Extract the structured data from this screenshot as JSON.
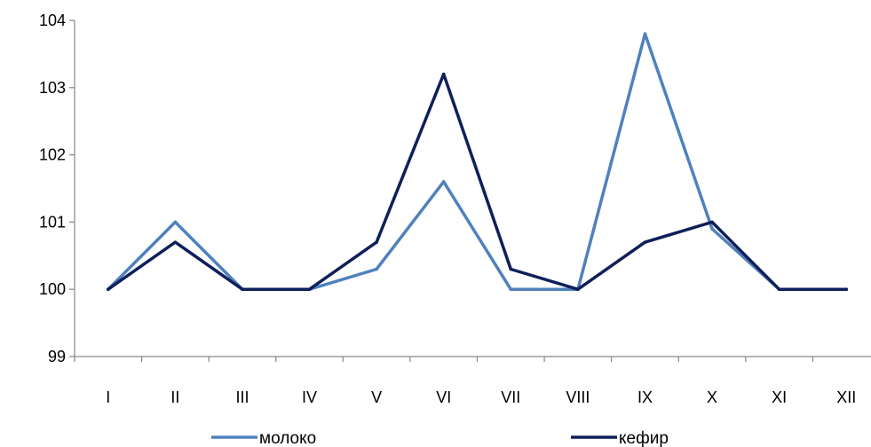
{
  "chart_data": {
    "type": "line",
    "title": "",
    "xlabel": "",
    "ylabel": "",
    "categories": [
      "I",
      "II",
      "III",
      "IV",
      "V",
      "VI",
      "VII",
      "VIII",
      "IX",
      "X",
      "XI",
      "XII"
    ],
    "ylim": [
      99,
      104
    ],
    "yticks": [
      99,
      100,
      101,
      102,
      103,
      104
    ],
    "grid": false,
    "legend_position": "bottom",
    "series": [
      {
        "name": "молоко",
        "color": "#4F81BD",
        "values": [
          100,
          101,
          100,
          100,
          100.3,
          101.6,
          100,
          100,
          103.8,
          100.9,
          100,
          100
        ]
      },
      {
        "name": "кефир",
        "color": "#0F1F5A",
        "values": [
          100,
          100.7,
          100,
          100,
          100.7,
          103.2,
          100.3,
          100,
          100.7,
          101,
          100,
          100
        ]
      }
    ]
  }
}
